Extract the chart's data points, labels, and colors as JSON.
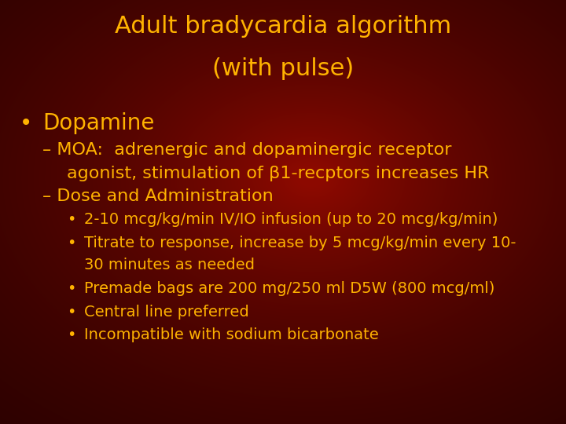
{
  "title_line1": "Adult bradycardia algorithm",
  "title_line2": "(with pulse)",
  "title_color": "#FFB300",
  "title_fontsize": 22,
  "text_color": "#FFB300",
  "bullet1": "Dopamine",
  "bullet1_fontsize": 20,
  "dash_fontsize": 16,
  "sub_fontsize": 14,
  "moa_line1": "– MOA:  adrenergic and dopaminergic receptor",
  "moa_line2": "agonist, stimulation of β1-recptors increases HR",
  "dose_line": "– Dose and Administration",
  "sub_bullets": [
    "2-10 mcg/kg/min IV/IO infusion (up to 20 mcg/kg/min)",
    "Titrate to response, increase by 5 mcg/kg/min every 10-",
    "30 minutes as needed",
    "Premade bags are 200 mg/250 ml D5W (800 mcg/ml)",
    "Central line preferred",
    "Incompatible with sodium bicarbonate"
  ]
}
